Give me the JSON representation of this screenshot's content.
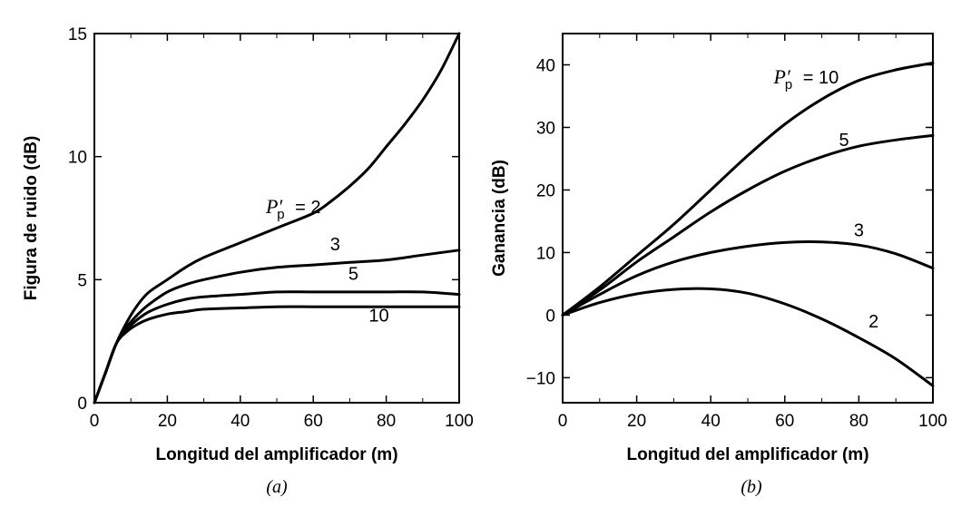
{
  "chart_data": [
    {
      "type": "line",
      "panel_label": "(a)",
      "xlabel": "Longitud del amplificador (m)",
      "ylabel": "Figura de ruido (dB)",
      "xlim": [
        0,
        100
      ],
      "ylim": [
        0,
        15
      ],
      "xticks": [
        0,
        20,
        40,
        60,
        80,
        100
      ],
      "yticks": [
        0,
        5,
        10,
        15
      ],
      "grid": false,
      "series": [
        {
          "name": "2",
          "x": [
            0,
            3,
            6,
            9,
            12,
            15,
            20,
            25,
            30,
            40,
            50,
            60,
            65,
            70,
            75,
            80,
            85,
            90,
            95,
            100
          ],
          "y": [
            0.0,
            1.2,
            2.4,
            3.3,
            4.0,
            4.5,
            5.0,
            5.5,
            5.9,
            6.5,
            7.1,
            7.7,
            8.2,
            8.8,
            9.5,
            10.4,
            11.3,
            12.3,
            13.5,
            15.0
          ]
        },
        {
          "name": "3",
          "x": [
            0,
            3,
            6,
            9,
            12,
            15,
            20,
            25,
            30,
            40,
            50,
            60,
            70,
            80,
            90,
            100
          ],
          "y": [
            0.0,
            1.2,
            2.4,
            3.1,
            3.6,
            4.0,
            4.5,
            4.8,
            5.0,
            5.3,
            5.5,
            5.6,
            5.7,
            5.8,
            6.0,
            6.2
          ]
        },
        {
          "name": "5",
          "x": [
            0,
            3,
            6,
            9,
            12,
            15,
            20,
            25,
            30,
            40,
            50,
            60,
            70,
            80,
            90,
            100
          ],
          "y": [
            0.0,
            1.2,
            2.4,
            3.0,
            3.4,
            3.7,
            4.0,
            4.2,
            4.3,
            4.4,
            4.5,
            4.5,
            4.5,
            4.5,
            4.5,
            4.4
          ]
        },
        {
          "name": "10",
          "x": [
            0,
            3,
            6,
            9,
            12,
            15,
            20,
            25,
            30,
            40,
            50,
            60,
            70,
            80,
            90,
            100
          ],
          "y": [
            0.0,
            1.2,
            2.4,
            2.9,
            3.2,
            3.4,
            3.6,
            3.7,
            3.8,
            3.85,
            3.9,
            3.9,
            3.9,
            3.9,
            3.9,
            3.9
          ]
        }
      ],
      "annotations": [
        {
          "text": "= 2",
          "x": 47,
          "y": 7.7
        },
        {
          "text": "3",
          "x": 66,
          "y": 6.2
        },
        {
          "text": "5",
          "x": 71,
          "y": 5.0
        },
        {
          "text": "10",
          "x": 78,
          "y": 3.3
        }
      ]
    },
    {
      "type": "line",
      "panel_label": "(b)",
      "xlabel": "Longitud del amplificador (m)",
      "ylabel": "Ganancia (dB)",
      "xlim": [
        0,
        100
      ],
      "ylim": [
        -14,
        45
      ],
      "xticks": [
        0,
        20,
        40,
        60,
        80,
        100
      ],
      "yticks": [
        -10,
        0,
        10,
        20,
        30,
        40
      ],
      "grid": false,
      "series": [
        {
          "name": "10",
          "x": [
            0,
            10,
            20,
            30,
            40,
            50,
            60,
            70,
            80,
            90,
            100
          ],
          "y": [
            0.0,
            4.5,
            9.5,
            14.5,
            20.0,
            25.5,
            30.5,
            34.5,
            37.5,
            39.2,
            40.3
          ]
        },
        {
          "name": "5",
          "x": [
            0,
            10,
            20,
            30,
            40,
            50,
            60,
            70,
            80,
            90,
            100
          ],
          "y": [
            0.0,
            4.0,
            8.5,
            12.5,
            16.5,
            20.0,
            23.0,
            25.3,
            27.0,
            28.0,
            28.7
          ]
        },
        {
          "name": "3",
          "x": [
            0,
            10,
            20,
            30,
            40,
            50,
            60,
            70,
            80,
            90,
            100
          ],
          "y": [
            0.0,
            3.3,
            6.3,
            8.5,
            10.0,
            11.0,
            11.6,
            11.7,
            11.2,
            9.8,
            7.5
          ]
        },
        {
          "name": "2",
          "x": [
            0,
            10,
            20,
            30,
            40,
            50,
            60,
            70,
            80,
            90,
            100
          ],
          "y": [
            0.0,
            2.0,
            3.4,
            4.1,
            4.2,
            3.5,
            1.8,
            -0.6,
            -3.6,
            -7.0,
            -11.3
          ]
        }
      ],
      "annotations": [
        {
          "text": "= 10",
          "x": 57,
          "y": 37
        },
        {
          "text": "5",
          "x": 76,
          "y": 27
        },
        {
          "text": "3",
          "x": 80,
          "y": 12.6
        },
        {
          "text": "2",
          "x": 84,
          "y": -2.0
        }
      ]
    }
  ],
  "pp_symbol": {
    "main": "P",
    "sub": "p"
  }
}
